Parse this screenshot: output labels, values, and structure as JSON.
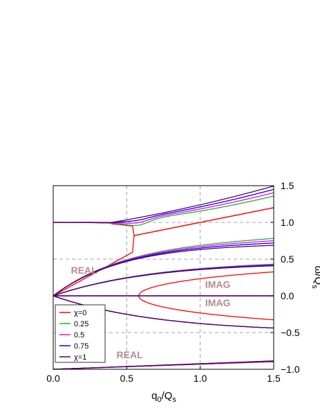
{
  "chart_data": {
    "type": "line",
    "xlabel_main": "q",
    "xlabel_sub1": "0",
    "xlabel_mid": "/Q",
    "xlabel_sub2": "s",
    "ylabel_main": "ω/Q",
    "ylabel_sub": "s",
    "xlim": [
      0,
      1.5
    ],
    "ylim": [
      -1.0,
      1.5
    ],
    "xticks": [
      {
        "v": 0,
        "label": "0.0"
      },
      {
        "v": 0.5,
        "label": "0.5"
      },
      {
        "v": 1.0,
        "label": "1.0"
      },
      {
        "v": 1.5,
        "label": "1.5"
      }
    ],
    "yticks": [
      {
        "v": 1.5,
        "label": "1.5"
      },
      {
        "v": 1.0,
        "label": "1.0"
      },
      {
        "v": 0.5,
        "label": "0.5"
      },
      {
        "v": 0.0,
        "label": "0.0"
      },
      {
        "v": -0.5,
        "label": "−0.5"
      },
      {
        "v": -1.0,
        "label": "−1.0"
      }
    ],
    "grid": true,
    "legend_position": "bottom-left",
    "annotations": [
      {
        "text": "REAL",
        "x": 0.21,
        "y": 0.3
      },
      {
        "text": "IMAG",
        "x": 1.12,
        "y": 0.11
      },
      {
        "text": "IMAG",
        "x": 1.12,
        "y": -0.14
      },
      {
        "text": "REAL",
        "x": 0.52,
        "y": -0.85
      }
    ],
    "series": [
      {
        "name": "χ=0",
        "color": "#ff0000",
        "chi": 0.0
      },
      {
        "name": "0.25",
        "color": "#22b422",
        "chi": 0.25
      },
      {
        "name": "0.5",
        "color": "#ff00ff",
        "chi": 0.5
      },
      {
        "name": "0.75",
        "color": "#0000ff",
        "chi": 0.75
      },
      {
        "name": "χ=1",
        "color": "#5a0060",
        "chi": 1.0
      }
    ]
  }
}
